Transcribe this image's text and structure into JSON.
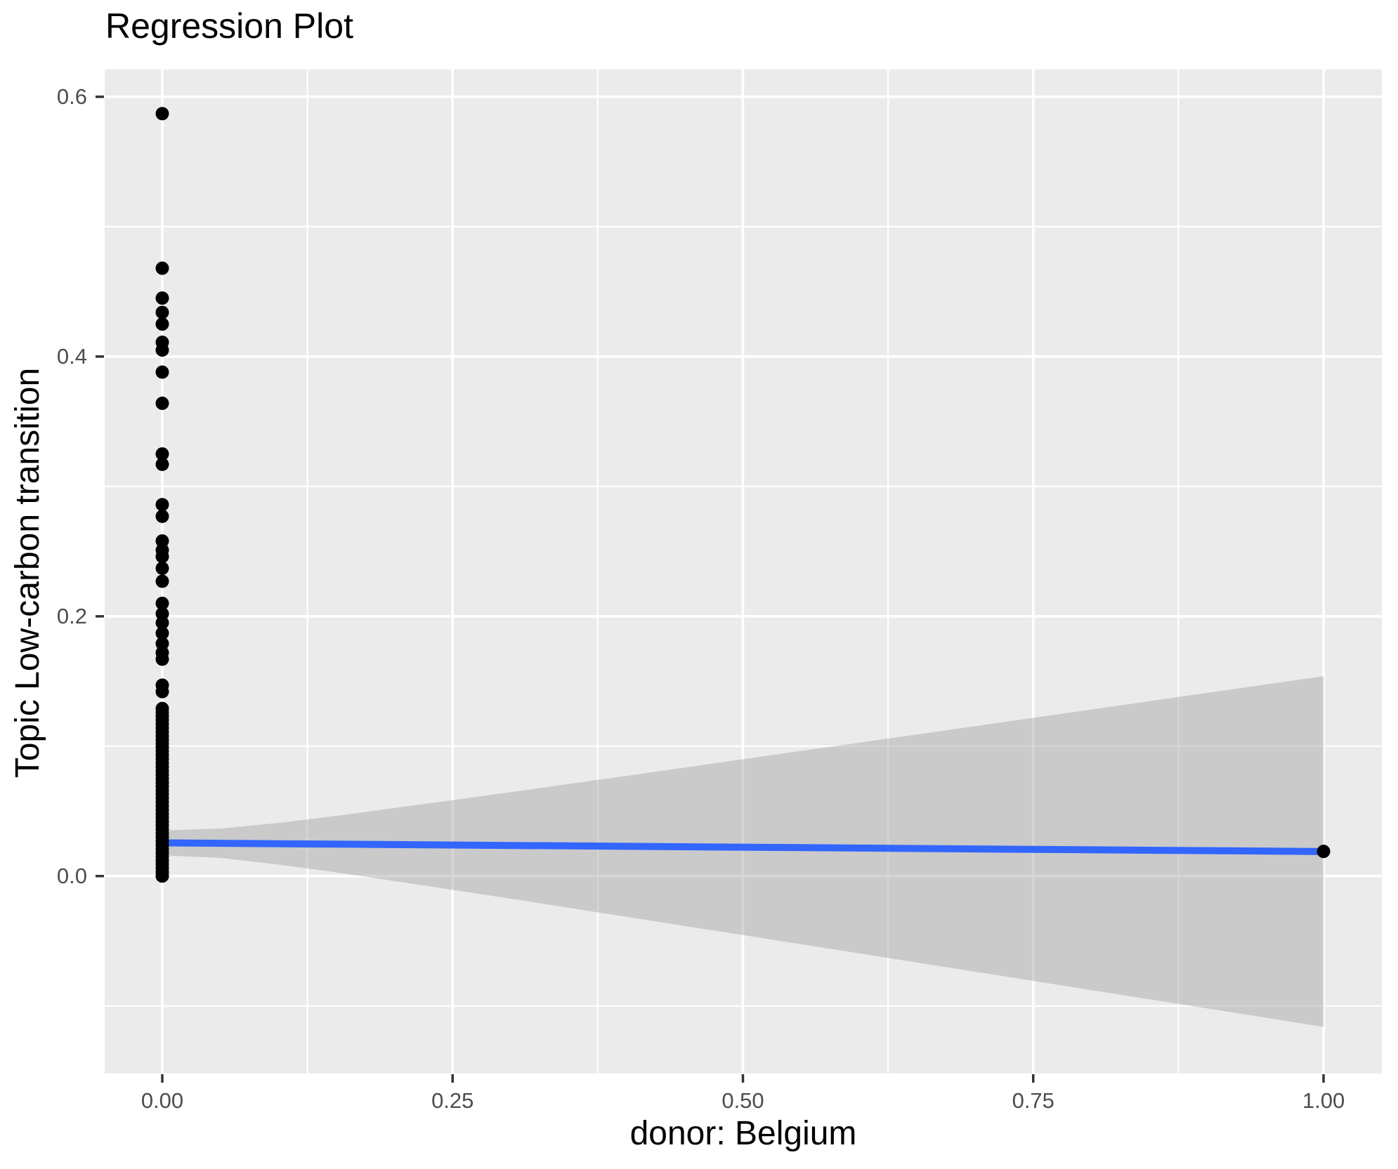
{
  "colors": {
    "background": "#FFFFFF",
    "panel_background": "#EBEBEB",
    "gridline": "#FFFFFF",
    "point": "#000000",
    "regression_line": "#3366FF",
    "confidence_band": "#999999",
    "confidence_band_opacity": 0.4,
    "tick_label_text": "#4D4D4D",
    "axis_title_text": "#000000",
    "tick_mark": "#333333"
  },
  "chart_data": {
    "type": "scatter",
    "title": "Regression Plot",
    "xlabel": "donor: Belgium",
    "ylabel": "Topic Low-carbon transition",
    "xlim": [
      -0.0496,
      1.0502
    ],
    "ylim": [
      -0.152,
      0.621
    ],
    "grid": true,
    "legend": "none",
    "x_ticks": {
      "values": [
        0.0,
        0.25,
        0.5,
        0.75,
        1.0
      ],
      "labels": [
        "0.00",
        "0.25",
        "0.50",
        "0.75",
        "1.00"
      ]
    },
    "y_ticks": {
      "values": [
        0.0,
        0.2,
        0.4,
        0.6
      ],
      "labels": [
        "0.0",
        "0.2",
        "0.4",
        "0.6"
      ]
    },
    "x_minor_gridlines": [
      0.125,
      0.375,
      0.625,
      0.875
    ],
    "y_minor_gridlines": [
      -0.1,
      0.1,
      0.3,
      0.5
    ],
    "points": [
      [
        0,
        0.587
      ],
      [
        0,
        0.468
      ],
      [
        0,
        0.445
      ],
      [
        0,
        0.434
      ],
      [
        0,
        0.425
      ],
      [
        0,
        0.411
      ],
      [
        0,
        0.405
      ],
      [
        0,
        0.388
      ],
      [
        0,
        0.364
      ],
      [
        0,
        0.325
      ],
      [
        0,
        0.317
      ],
      [
        0,
        0.286
      ],
      [
        0,
        0.277
      ],
      [
        0,
        0.258
      ],
      [
        0,
        0.251
      ],
      [
        0,
        0.246
      ],
      [
        0,
        0.237
      ],
      [
        0,
        0.227
      ],
      [
        0,
        0.21
      ],
      [
        0,
        0.202
      ],
      [
        0,
        0.195
      ],
      [
        0,
        0.187
      ],
      [
        0,
        0.179
      ],
      [
        0,
        0.172
      ],
      [
        0,
        0.167
      ],
      [
        0,
        0.147
      ],
      [
        0,
        0.142
      ],
      [
        0,
        0.129
      ],
      [
        0,
        0.126
      ],
      [
        0,
        0.123
      ],
      [
        0,
        0.12
      ],
      [
        0,
        0.117
      ],
      [
        0,
        0.114
      ],
      [
        0,
        0.111
      ],
      [
        0,
        0.108
      ],
      [
        0,
        0.105
      ],
      [
        0,
        0.102
      ],
      [
        0,
        0.099
      ],
      [
        0,
        0.096
      ],
      [
        0,
        0.093
      ],
      [
        0,
        0.09
      ],
      [
        0,
        0.087
      ],
      [
        0,
        0.084
      ],
      [
        0,
        0.081
      ],
      [
        0,
        0.078
      ],
      [
        0,
        0.075
      ],
      [
        0,
        0.072
      ],
      [
        0,
        0.069
      ],
      [
        0,
        0.066
      ],
      [
        0,
        0.063
      ],
      [
        0,
        0.06
      ],
      [
        0,
        0.057
      ],
      [
        0,
        0.054
      ],
      [
        0,
        0.051
      ],
      [
        0,
        0.048
      ],
      [
        0,
        0.045
      ],
      [
        0,
        0.042
      ],
      [
        0,
        0.039
      ],
      [
        0,
        0.036
      ],
      [
        0,
        0.033
      ],
      [
        0,
        0.03
      ],
      [
        0,
        0.027
      ],
      [
        0,
        0.024
      ],
      [
        0,
        0.021
      ],
      [
        0,
        0.018
      ],
      [
        0,
        0.015
      ],
      [
        0,
        0.012
      ],
      [
        0,
        0.009
      ],
      [
        0,
        0.006
      ],
      [
        0,
        0.003
      ],
      [
        0,
        0.0
      ],
      [
        1,
        0.019
      ]
    ],
    "regression_line": {
      "x": [
        0,
        1
      ],
      "y": [
        0.0256,
        0.0189
      ]
    },
    "confidence_band": {
      "x": [
        0,
        0.05,
        0.1,
        0.15,
        0.2,
        0.3,
        0.4,
        0.5,
        0.6,
        0.7,
        0.8,
        0.9,
        1.0
      ],
      "upper": [
        0.0352,
        0.0366,
        0.0409,
        0.0464,
        0.0524,
        0.0646,
        0.0772,
        0.09,
        0.1027,
        0.1154,
        0.1282,
        0.1411,
        0.1539
      ],
      "lower": [
        0.016,
        0.014,
        0.0089,
        0.0028,
        -0.0038,
        -0.0174,
        -0.0314,
        -0.0454,
        -0.0595,
        -0.0736,
        -0.0878,
        -0.1019,
        -0.1161
      ]
    }
  }
}
